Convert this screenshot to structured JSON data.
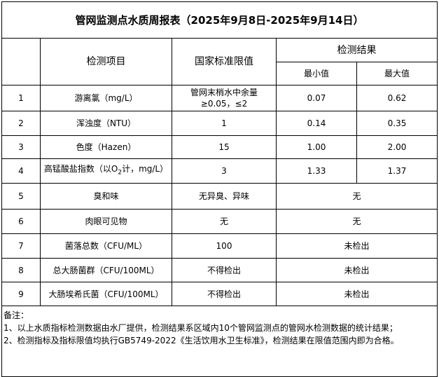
{
  "title": "管网监测点水质周报表（2025年9月8日-2025年9月14日）",
  "headers": {
    "item": "检测项目",
    "standard": "国家标准限值",
    "result": "检测结果",
    "min": "最小值",
    "max": "最大值"
  },
  "rows": [
    {
      "no": "1",
      "item": "游离氯（mg/L）",
      "standard": "管网末梢水中余量≥0.05，≤2",
      "min": "0.07",
      "max": "0.62"
    },
    {
      "no": "2",
      "item": "浑浊度（NTU）",
      "standard": "1",
      "min": "0.14",
      "max": "0.35"
    },
    {
      "no": "3",
      "item": "色度（Hazen）",
      "standard": "15",
      "min": "1.00",
      "max": "2.00"
    },
    {
      "no": "4",
      "item_pre": "高锰酸盐指数（以O",
      "item_sub": "2",
      "item_post": "计，mg/L）",
      "standard": "3",
      "min": "1.33",
      "max": "1.37"
    },
    {
      "no": "5",
      "item": "臭和味",
      "standard": "无异臭、异味",
      "result": "无"
    },
    {
      "no": "6",
      "item": "肉眼可见物",
      "standard": "无",
      "result": "无"
    },
    {
      "no": "7",
      "item": "菌落总数（CFU/ML）",
      "standard": "100",
      "result": "未检出"
    },
    {
      "no": "8",
      "item": "总大肠菌群（CFU/100ML）",
      "standard": "不得检出",
      "result": "未检出"
    },
    {
      "no": "9",
      "item": "大肠埃希氏菌（CFU/100ML）",
      "standard": "不得检出",
      "result": "未检出"
    }
  ],
  "notes": {
    "label": "备注：",
    "line1": "1、以上水质指标检测数据由水厂提供，检测结果系区域内10个管网监测点的管网水检测数据的统计结果；",
    "line2": "2、检测指标及指标限值均执行GB5749-2022《生活饮用水卫生标准》，检测结果在限值范围内即为合格。"
  }
}
